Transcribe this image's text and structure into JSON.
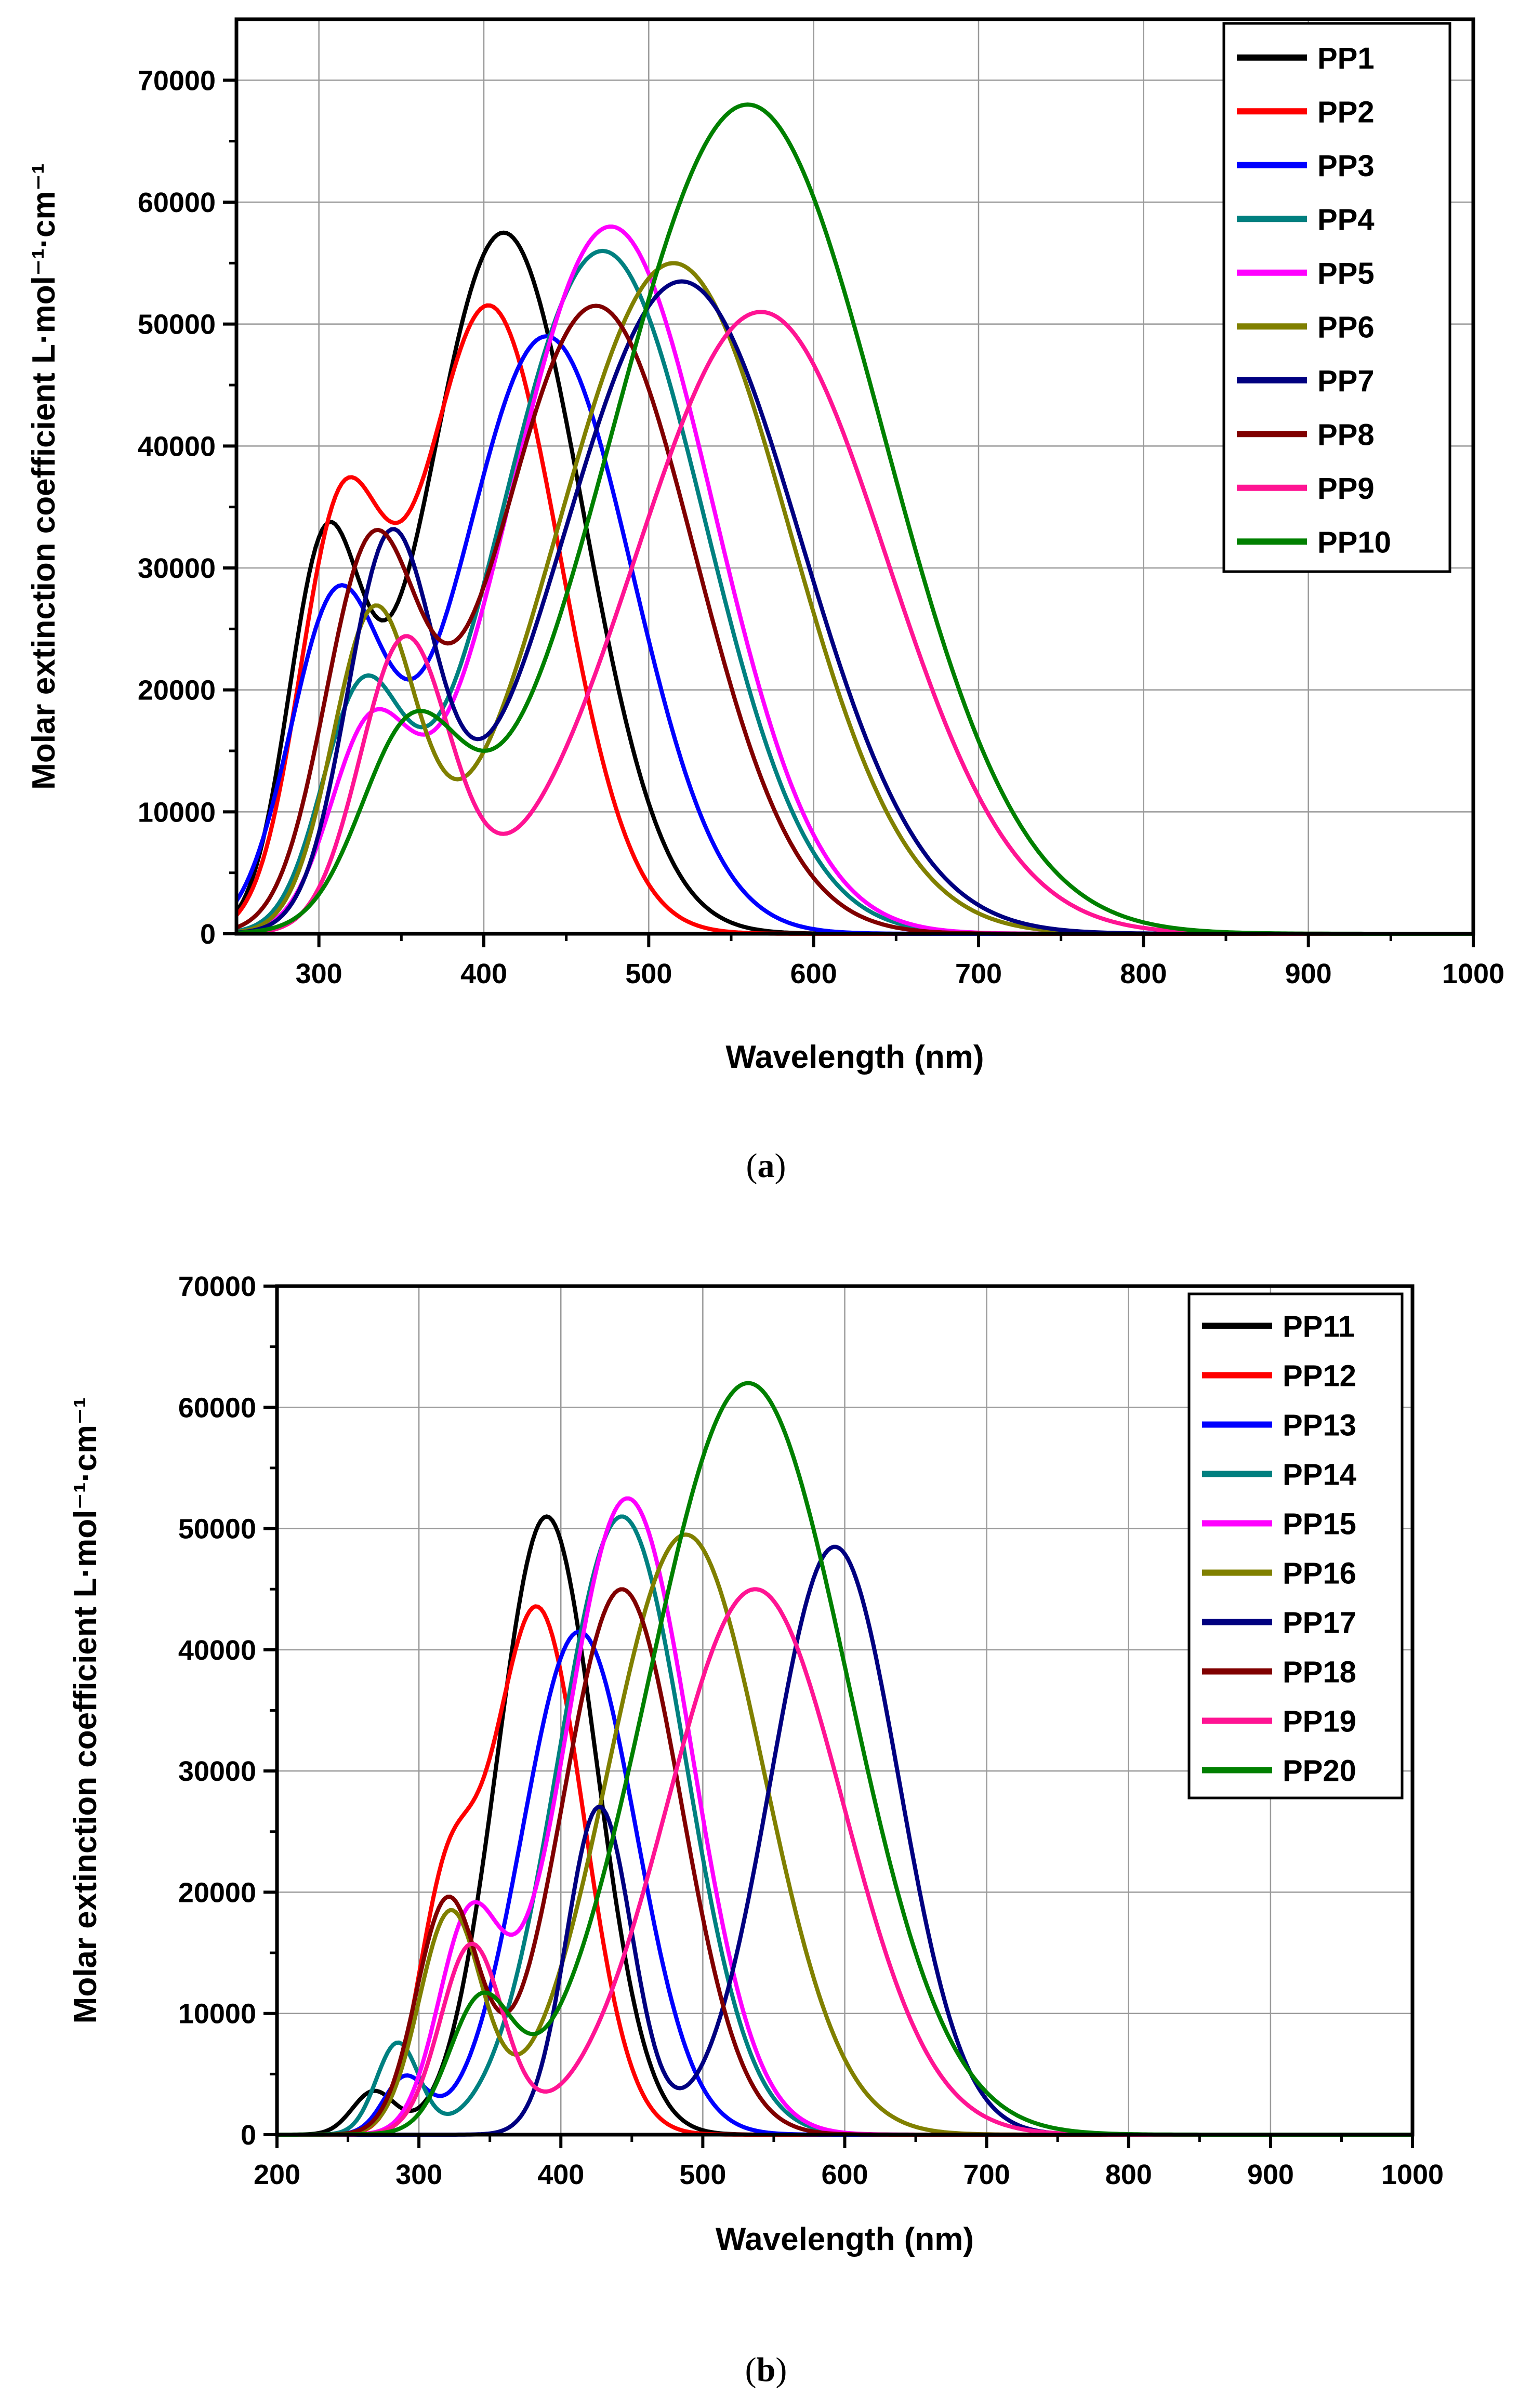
{
  "chart_data": [
    {
      "type": "line",
      "panel_label": "a",
      "caption_open": "(",
      "caption_close": ")",
      "ylabel": "Molar extinction coefficient  L·mol⁻¹·cm⁻¹",
      "xlabel": "Wavelength (nm)",
      "xlim": [
        250,
        1000
      ],
      "ylim": [
        0,
        75000
      ],
      "xticks": [
        300,
        400,
        500,
        600,
        700,
        800,
        900,
        1000
      ],
      "yticks": [
        0,
        10000,
        20000,
        30000,
        40000,
        50000,
        60000,
        70000
      ],
      "xminor": [
        350,
        450,
        550,
        650,
        750,
        850,
        950
      ],
      "yminor": [
        5000,
        15000,
        25000,
        35000,
        45000,
        55000,
        65000
      ],
      "grid": true,
      "legend_position": "top-right",
      "series": [
        {
          "name": "PP1",
          "color": "#000000",
          "peaks": [
            [
              303,
              29000,
              22
            ],
            [
              412,
              57500,
              48
            ]
          ]
        },
        {
          "name": "PP2",
          "color": "#ff0000",
          "peaks": [
            [
              312,
              31000,
              25
            ],
            [
              403,
              51500,
              43
            ]
          ]
        },
        {
          "name": "PP3",
          "color": "#0000ff",
          "peaks": [
            [
              310,
              26000,
              28
            ],
            [
              438,
              49000,
              52
            ]
          ]
        },
        {
          "name": "PP4",
          "color": "#008080",
          "peaks": [
            [
              325,
              17500,
              24
            ],
            [
              472,
              56000,
              62
            ]
          ]
        },
        {
          "name": "PP5",
          "color": "#ff00ff",
          "peaks": [
            [
              330,
              14500,
              24
            ],
            [
              477,
              58000,
              62
            ]
          ]
        },
        {
          "name": "PP6",
          "color": "#808000",
          "peaks": [
            [
              333,
              25000,
              25
            ],
            [
              515,
              55000,
              70
            ]
          ]
        },
        {
          "name": "PP7",
          "color": "#000080",
          "peaks": [
            [
              343,
              30500,
              26
            ],
            [
              520,
              53500,
              72
            ]
          ]
        },
        {
          "name": "PP8",
          "color": "#800000",
          "peaks": [
            [
              331,
              29000,
              28
            ],
            [
              468,
              51500,
              60
            ]
          ]
        },
        {
          "name": "PP9",
          "color": "#ff1493",
          "peaks": [
            [
              352,
              23500,
              27
            ],
            [
              568,
              51000,
              76
            ]
          ]
        },
        {
          "name": "PP10",
          "color": "#008000",
          "peaks": [
            [
              355,
              15000,
              30
            ],
            [
              560,
              68000,
              82
            ]
          ]
        }
      ]
    },
    {
      "type": "line",
      "panel_label": "b",
      "caption_open": "(",
      "caption_close": ")",
      "ylabel": "Molar extinction coefficient  L·mol⁻¹·cm⁻¹",
      "xlabel": "Wavelength (nm)",
      "xlim": [
        200,
        1000
      ],
      "ylim": [
        0,
        70000
      ],
      "xticks": [
        200,
        300,
        400,
        500,
        600,
        700,
        800,
        900,
        1000
      ],
      "yticks": [
        0,
        10000,
        20000,
        30000,
        40000,
        50000,
        60000,
        70000
      ],
      "xminor": [
        250,
        350,
        450,
        550,
        650,
        750,
        850,
        950
      ],
      "yminor": [
        5000,
        15000,
        25000,
        35000,
        45000,
        55000,
        65000
      ],
      "grid": true,
      "legend_position": "top-right",
      "series": [
        {
          "name": "PP11",
          "color": "#000000",
          "peaks": [
            [
              268,
              3500,
              15
            ],
            [
              390,
              51000,
              35
            ]
          ]
        },
        {
          "name": "PP12",
          "color": "#ff0000",
          "peaks": [
            [
              318,
              17000,
              20
            ],
            [
              383,
              43500,
              33
            ]
          ]
        },
        {
          "name": "PP13",
          "color": "#0000ff",
          "peaks": [
            [
              290,
              4500,
              15
            ],
            [
              413,
              41500,
              40
            ]
          ]
        },
        {
          "name": "PP14",
          "color": "#008080",
          "peaks": [
            [
              285,
              7500,
              15
            ],
            [
              443,
              51000,
              45
            ]
          ]
        },
        {
          "name": "PP15",
          "color": "#ff00ff",
          "peaks": [
            [
              335,
              16500,
              22
            ],
            [
              447,
              52500,
              45
            ]
          ]
        },
        {
          "name": "PP16",
          "color": "#808000",
          "peaks": [
            [
              322,
              18000,
              22
            ],
            [
              488,
              49500,
              55
            ]
          ]
        },
        {
          "name": "PP17",
          "color": "#000080",
          "peaks": [
            [
              427,
              27000,
              23
            ],
            [
              593,
              48500,
              45
            ]
          ]
        },
        {
          "name": "PP18",
          "color": "#800000",
          "peaks": [
            [
              320,
              19000,
              22
            ],
            [
              443,
              45000,
              42
            ]
          ]
        },
        {
          "name": "PP19",
          "color": "#ff1493",
          "peaks": [
            [
              337,
              15500,
              22
            ],
            [
              537,
              45000,
              62
            ]
          ]
        },
        {
          "name": "PP20",
          "color": "#008000",
          "peaks": [
            [
              343,
              10000,
              22
            ],
            [
              532,
              62000,
              70
            ]
          ]
        }
      ]
    }
  ]
}
